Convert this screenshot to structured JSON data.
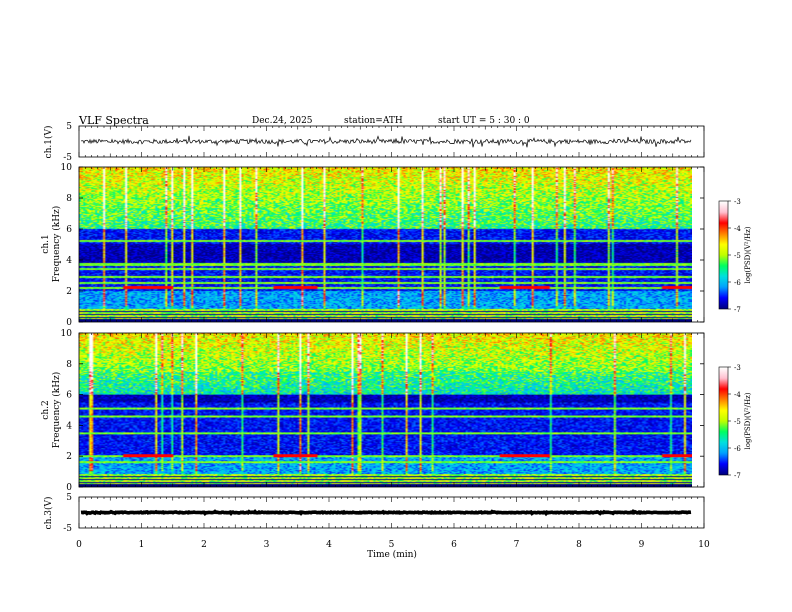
{
  "header": {
    "title": "VLF  Spectra",
    "date": "Dec.24, 2025",
    "station": "station=ATH",
    "start_ut": "start  UT  =    5  : 30 : 0"
  },
  "colors": {
    "spectrum": [
      "#000080",
      "#0000ff",
      "#00a0ff",
      "#00e0e0",
      "#00ff60",
      "#c0ff00",
      "#ffff00",
      "#ff8000",
      "#ff0000",
      "#ffc0d0",
      "#ffffff"
    ],
    "trace": "#000000",
    "axes": "#000000"
  },
  "chart_data": [
    {
      "type": "line",
      "name": "ch1-waveform",
      "ylabel": "ch.1(V)",
      "ylim": [
        -5,
        5
      ],
      "y_ticks": [
        "5",
        "-5"
      ],
      "xlim": [
        0,
        10
      ],
      "baseline": 0,
      "amplitude_range": [
        -1.2,
        1.2
      ]
    },
    {
      "type": "heatmap",
      "name": "ch1-spectrogram",
      "ylabel_line1": "ch.1",
      "ylabel_line2": "Frequency  (kHz)",
      "ylim": [
        0,
        10
      ],
      "y_ticks": [
        "0",
        "2",
        "4",
        "6",
        "8",
        "10"
      ],
      "xlim": [
        0,
        10
      ],
      "colorbar": {
        "label": "log(PSD)(V²/Hz)",
        "range": [
          -7,
          -3
        ],
        "ticks": [
          "-3",
          "-4",
          "-5",
          "-6",
          "-7"
        ]
      },
      "lines_khz": [
        2.2,
        2.5,
        2.9,
        3.4,
        3.7,
        5.2
      ],
      "tone_khz": 2.2,
      "tone_segments_min": [
        [
          0.7,
          1.5
        ],
        [
          3.1,
          3.8
        ],
        [
          6.7,
          7.5
        ],
        [
          9.3,
          9.8
        ]
      ],
      "quiet_band_khz": [
        3.8,
        5.0
      ]
    },
    {
      "type": "heatmap",
      "name": "ch2-spectrogram",
      "ylabel_line1": "ch.2",
      "ylabel_line2": "Frequency  (kHz)",
      "ylim": [
        0,
        10
      ],
      "y_ticks": [
        "0",
        "2",
        "4",
        "6",
        "8",
        "10"
      ],
      "xlim": [
        0,
        10
      ],
      "colorbar": {
        "label": "log(PSD)(V²/Hz)",
        "range": [
          -7,
          -3
        ],
        "ticks": [
          "-3",
          "-4",
          "-5",
          "-6",
          "-7"
        ]
      },
      "lines_khz": [
        1.6,
        2.0,
        3.5,
        4.6,
        5.1
      ],
      "tone_khz": 2.0,
      "tone_segments_min": [
        [
          0.7,
          1.5
        ],
        [
          3.1,
          3.8
        ],
        [
          6.7,
          7.5
        ],
        [
          9.3,
          9.8
        ]
      ],
      "quiet_band_khz": [
        5.5,
        7.5
      ]
    },
    {
      "type": "line",
      "name": "ch3-waveform",
      "ylabel": "ch.3(V)",
      "ylim": [
        -5,
        5
      ],
      "y_ticks": [
        "5",
        "-5"
      ],
      "xlim": [
        0,
        10
      ],
      "baseline": 0,
      "amplitude_range": [
        -0.2,
        0.2
      ]
    }
  ],
  "x_axis": {
    "label": "Time  (min)",
    "range": [
      0,
      10
    ],
    "ticks": [
      "0",
      "1",
      "2",
      "3",
      "4",
      "5",
      "6",
      "7",
      "8",
      "9",
      "10"
    ],
    "data_end_min": 9.8
  }
}
